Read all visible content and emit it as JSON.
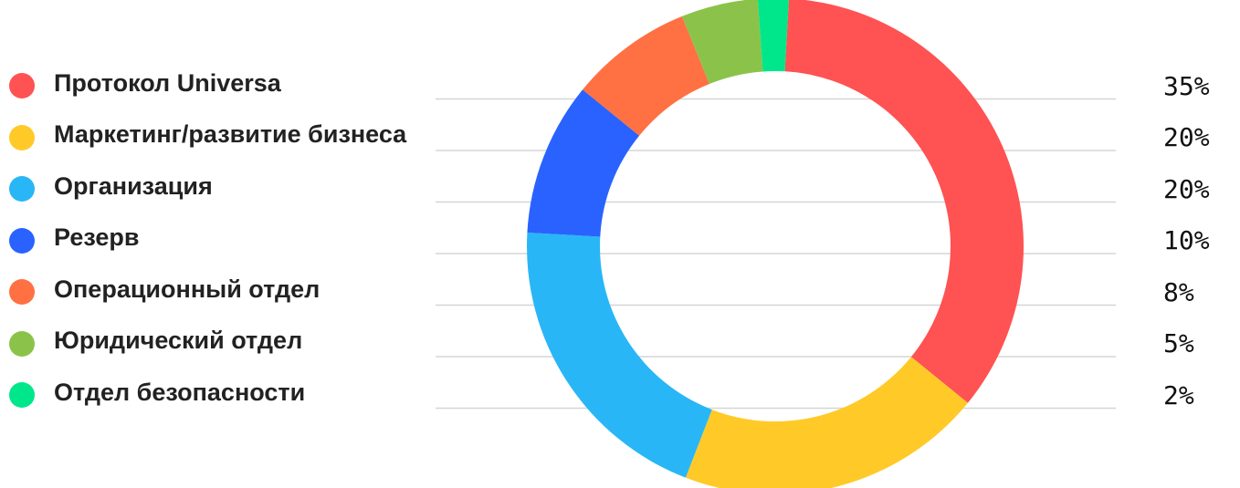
{
  "chart_data": {
    "type": "pie",
    "donut": true,
    "categories": [
      "Протокол Universa",
      "Маркетинг/развитие бизнеса",
      "Организация",
      "Резерв",
      "Операционный отдел",
      "Юридический отдел",
      "Отдел безопасности"
    ],
    "values": [
      35,
      20,
      20,
      10,
      8,
      5,
      2
    ],
    "value_labels": [
      "35%",
      "20%",
      "20%",
      "10%",
      "8%",
      "5%",
      "2%"
    ],
    "colors": [
      "#ff5252",
      "#ffca28",
      "#29b6f6",
      "#2962ff",
      "#ff7043",
      "#8bc34a",
      "#00e68a"
    ],
    "legend_position": "left",
    "grid": true,
    "title": ""
  }
}
